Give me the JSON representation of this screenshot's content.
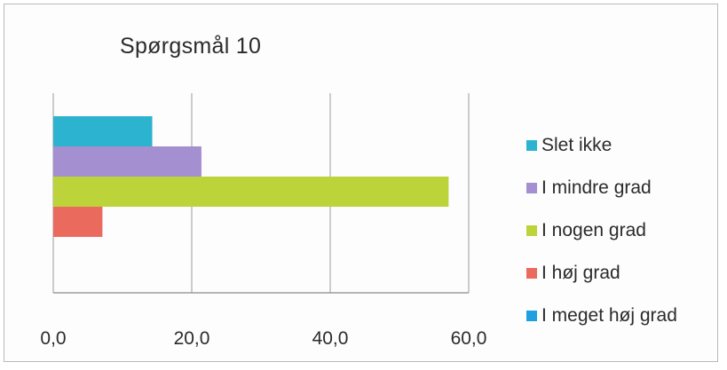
{
  "chart_data": {
    "type": "bar",
    "orientation": "horizontal",
    "title": "Spørgsmål 10",
    "xlabel": "",
    "ylabel": "",
    "xlim": [
      0,
      60
    ],
    "x_ticks": [
      "0,0",
      "20,0",
      "40,0",
      "60,0"
    ],
    "grid": "vertical",
    "legend_position": "right",
    "series": [
      {
        "name": "Slet ikke",
        "value": 14.3,
        "color": "#2bb3cf"
      },
      {
        "name": "I mindre grad",
        "value": 21.4,
        "color": "#a48fd1"
      },
      {
        "name": "I nogen grad",
        "value": 57.1,
        "color": "#bdd33a"
      },
      {
        "name": "I høj grad",
        "value": 7.1,
        "color": "#ea6b5e"
      },
      {
        "name": "I meget høj grad",
        "value": 0,
        "color": "#1f9fe0"
      }
    ]
  }
}
